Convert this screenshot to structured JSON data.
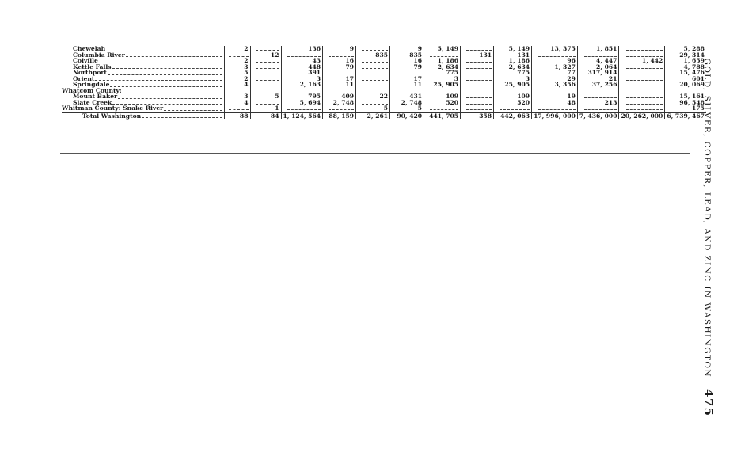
{
  "running_head": {
    "title": "GOLD, SILVER, COPPER, LEAD, AND ZINC IN WASHINGTON",
    "page_number": "475"
  },
  "table": {
    "rows": [
      {
        "name": "Chewelah",
        "indent": 1,
        "values": [
          "2",
          null,
          "136",
          "9",
          null,
          "9",
          "5, 149",
          null,
          "5, 149",
          "13, 375",
          "1, 851",
          null,
          "5, 288"
        ]
      },
      {
        "name": "Columbia River",
        "indent": 1,
        "values": [
          null,
          "12",
          null,
          null,
          "835",
          "835",
          null,
          "131",
          "131",
          null,
          null,
          null,
          "29, 314"
        ]
      },
      {
        "name": "Colville",
        "indent": 1,
        "values": [
          "2",
          null,
          "43",
          "16",
          null,
          "16",
          "1, 186",
          null,
          "1, 186",
          "96",
          "4, 447",
          "1, 442",
          "1, 659"
        ]
      },
      {
        "name": "Kettle Falls",
        "indent": 1,
        "values": [
          "3",
          null,
          "448",
          "79",
          null,
          "79",
          "2, 634",
          null,
          "2, 634",
          "1, 327",
          "2, 064",
          null,
          "4, 788"
        ]
      },
      {
        "name": "Northport",
        "indent": 1,
        "values": [
          "5",
          null,
          "391",
          null,
          null,
          null,
          "775",
          null,
          "775",
          "77",
          "317, 914",
          null,
          "15, 476"
        ]
      },
      {
        "name": "Orient",
        "indent": 1,
        "values": [
          "2",
          null,
          "3",
          "17",
          null,
          "17",
          "3",
          null,
          "3",
          "29",
          "21",
          null,
          "601"
        ]
      },
      {
        "name": "Springdale",
        "indent": 1,
        "values": [
          "4",
          null,
          "2, 163",
          "11",
          null,
          "11",
          "25, 905",
          null,
          "25, 905",
          "3, 356",
          "37, 256",
          null,
          "20, 069"
        ]
      },
      {
        "name": "Whatcom County:",
        "indent": 0,
        "header": true,
        "values": []
      },
      {
        "name": "Mount Baker",
        "indent": 1,
        "values": [
          "3",
          "5",
          "795",
          "409",
          "22",
          "431",
          "109",
          null,
          "109",
          "19",
          null,
          null,
          "15, 161"
        ]
      },
      {
        "name": "Slate Creek",
        "indent": 1,
        "values": [
          "4",
          null,
          "5, 694",
          "2, 748",
          null,
          "2, 748",
          "520",
          null,
          "520",
          "48",
          "213",
          null,
          "96, 548"
        ]
      },
      {
        "name": "Whitman County: Snake River",
        "indent": 0,
        "values": [
          null,
          "1",
          null,
          null,
          "5",
          "5",
          null,
          null,
          null,
          null,
          null,
          null,
          "175"
        ]
      }
    ],
    "total": {
      "name": "Total Washington",
      "values": [
        "88",
        "84",
        "1, 124, 564",
        "88, 159",
        "2, 261",
        "90, 420",
        "441, 705",
        "358",
        "442, 063",
        "17, 996, 000",
        "7, 436, 000",
        "20, 262, 000",
        "6, 739, 467"
      ]
    }
  }
}
